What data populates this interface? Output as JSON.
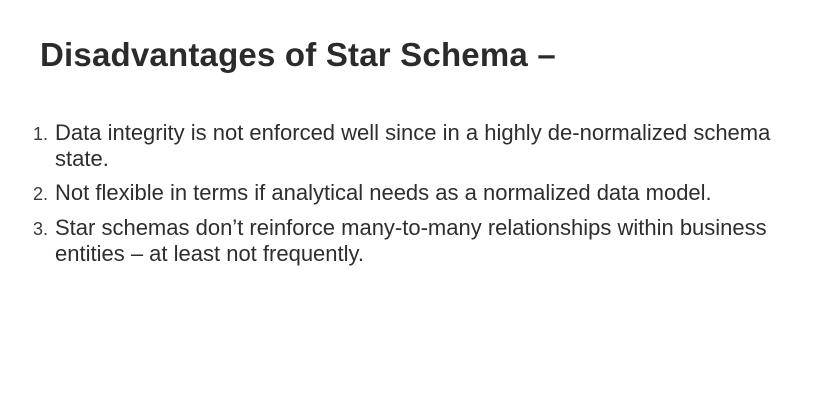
{
  "slide": {
    "title": "Disadvantages of Star Schema –",
    "points": [
      {
        "number": "1.",
        "text": "Data integrity is not enforced well since in a highly de-normalized schema state."
      },
      {
        "number": "2.",
        "text": "Not flexible in terms if analytical needs as a normalized data model."
      },
      {
        "number": "3.",
        "text": "Star schemas don’t reinforce many-to-many relationships within business entities – at least not frequently."
      }
    ]
  },
  "colors": {
    "background": "#ffffff",
    "title_text": "#2b2b2b",
    "body_text": "#2e2e2e"
  }
}
